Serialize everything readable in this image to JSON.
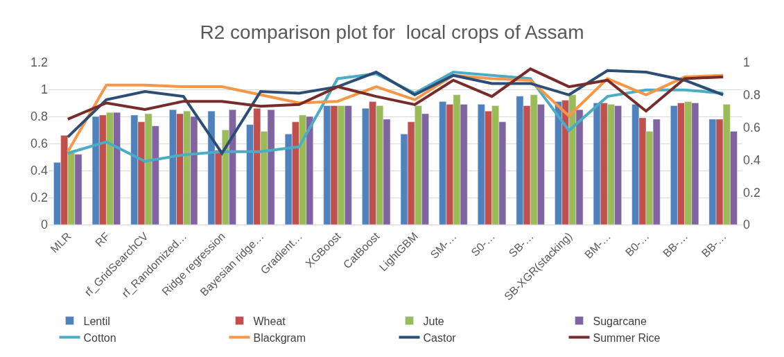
{
  "chart_data": {
    "type": "bar",
    "title": "R2 comparison plot for  local crops of Assam",
    "categories": [
      "MLR",
      "RF",
      "rf_GridSearchCV",
      "rf_Randomized…",
      "Ridge regression",
      "Bayesian ridge…",
      "Gradient…",
      "XGBoost",
      "CatBoost",
      "LightGBM",
      "SM-…",
      "S0-…",
      "SB-…",
      "SB-XGR(stacking)",
      "BM-…",
      "B0-…",
      "BB-…",
      "BB-…"
    ],
    "series": [
      {
        "name": "Lentil",
        "color": "#4f81bd",
        "values": [
          0.46,
          0.8,
          0.81,
          0.85,
          0.84,
          0.74,
          0.67,
          0.88,
          0.86,
          0.67,
          0.91,
          0.89,
          0.95,
          0.91,
          0.9,
          0.89,
          0.88,
          0.78
        ]
      },
      {
        "name": "Wheat",
        "color": "#c0504d",
        "values": [
          0.66,
          0.81,
          0.76,
          0.82,
          0.55,
          0.86,
          0.76,
          0.88,
          0.91,
          0.76,
          0.89,
          0.84,
          0.88,
          0.92,
          0.9,
          0.79,
          0.9,
          0.78
        ]
      },
      {
        "name": "Jute",
        "color": "#9bbb59",
        "values": [
          0.53,
          0.83,
          0.82,
          0.84,
          0.7,
          0.69,
          0.81,
          0.88,
          0.88,
          0.88,
          0.96,
          0.88,
          0.96,
          0.96,
          0.89,
          0.69,
          0.91,
          0.89
        ]
      },
      {
        "name": "Sugarcane",
        "color": "#8064a2",
        "values": [
          0.52,
          0.83,
          0.73,
          0.8,
          0.85,
          0.85,
          0.8,
          0.88,
          0.78,
          0.82,
          0.89,
          0.76,
          0.89,
          0.85,
          0.88,
          0.78,
          0.9,
          0.69
        ]
      },
      {
        "name": "Cotton",
        "type": "line",
        "axis": "y2",
        "color": "#4bacc6",
        "values": [
          0.44,
          0.51,
          0.39,
          0.43,
          0.45,
          0.45,
          0.48,
          0.9,
          0.93,
          0.81,
          0.94,
          0.92,
          0.9,
          0.58,
          0.79,
          0.83,
          0.83,
          0.81
        ]
      },
      {
        "name": "Blackgram",
        "type": "line",
        "axis": "y2",
        "color": "#f79646",
        "values": [
          0.45,
          0.86,
          0.86,
          0.85,
          0.85,
          0.8,
          0.75,
          0.76,
          0.85,
          0.77,
          0.92,
          0.9,
          0.89,
          0.67,
          0.9,
          0.8,
          0.91,
          0.92
        ]
      },
      {
        "name": "Castor",
        "type": "line",
        "axis": "y2",
        "color": "#2c4d75",
        "values": [
          0.54,
          0.77,
          0.82,
          0.79,
          0.44,
          0.82,
          0.81,
          0.85,
          0.94,
          0.8,
          0.92,
          0.87,
          0.87,
          0.8,
          0.95,
          0.94,
          0.89,
          0.8
        ]
      },
      {
        "name": "Summer Rice",
        "type": "line",
        "axis": "y2",
        "color": "#772c2a",
        "values": [
          0.65,
          0.75,
          0.71,
          0.76,
          0.76,
          0.73,
          0.74,
          0.85,
          0.79,
          0.74,
          0.89,
          0.79,
          0.96,
          0.85,
          0.89,
          0.7,
          0.9,
          0.91
        ]
      }
    ],
    "ylim": [
      0,
      1.2
    ],
    "yticks": [
      0,
      0.2,
      0.4,
      0.6,
      0.8,
      1,
      1.2
    ],
    "y2lim": [
      0,
      1
    ],
    "y2ticks": [
      0,
      0.2,
      0.4,
      0.6,
      0.8,
      1
    ],
    "grid": "y",
    "legend": "bottom",
    "marker": "none",
    "line_style": "solid"
  }
}
